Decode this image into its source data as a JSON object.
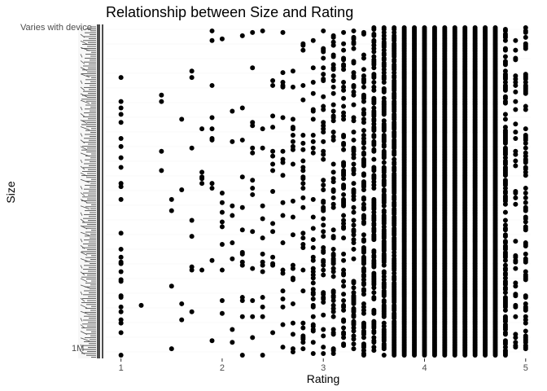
{
  "chart_data": {
    "type": "scatter",
    "title": "Relationship between Size and Rating",
    "xlabel": "Rating",
    "ylabel": "Size",
    "x_ticks": [
      1,
      2,
      3,
      4,
      5
    ],
    "x_tick_labels": [
      "1",
      "2",
      "3",
      "4",
      "5"
    ],
    "xlim": [
      0.85,
      5.05
    ],
    "y_axis_kind": "categorical (sizes as text categories, overlapping unreadable tick labels)",
    "y_visible_tick_labels": [
      "Varies with device",
      "1M"
    ],
    "grid": true,
    "point_color": "#000000",
    "legend": "none",
    "columns": [
      {
        "rating": 1.0,
        "count": 28
      },
      {
        "rating": 1.2,
        "count": 1
      },
      {
        "rating": 1.4,
        "count": 4
      },
      {
        "rating": 1.5,
        "count": 4
      },
      {
        "rating": 1.6,
        "count": 4
      },
      {
        "rating": 1.7,
        "count": 8
      },
      {
        "rating": 1.8,
        "count": 6
      },
      {
        "rating": 1.9,
        "count": 11
      },
      {
        "rating": 2.0,
        "count": 10
      },
      {
        "rating": 2.1,
        "count": 8
      },
      {
        "rating": 2.2,
        "count": 14
      },
      {
        "rating": 2.3,
        "count": 14
      },
      {
        "rating": 2.4,
        "count": 14
      },
      {
        "rating": 2.5,
        "count": 15
      },
      {
        "rating": 2.6,
        "count": 20
      },
      {
        "rating": 2.7,
        "count": 22
      },
      {
        "rating": 2.8,
        "count": 30
      },
      {
        "rating": 2.9,
        "count": 36
      },
      {
        "rating": 3.0,
        "count": 50
      },
      {
        "rating": 3.1,
        "count": 58
      },
      {
        "rating": 3.2,
        "count": 64
      },
      {
        "rating": 3.3,
        "count": 70
      },
      {
        "rating": 3.4,
        "count": 90
      },
      {
        "rating": 3.5,
        "count": 110
      },
      {
        "rating": 3.6,
        "count": 140
      },
      {
        "rating": 3.7,
        "count": 170
      },
      {
        "rating": 3.8,
        "count": 210
      },
      {
        "rating": 3.9,
        "count": 260
      },
      {
        "rating": 4.0,
        "count": 320
      },
      {
        "rating": 4.1,
        "count": 380
      },
      {
        "rating": 4.2,
        "count": 400
      },
      {
        "rating": 4.3,
        "count": 420
      },
      {
        "rating": 4.4,
        "count": 410
      },
      {
        "rating": 4.5,
        "count": 380
      },
      {
        "rating": 4.6,
        "count": 300
      },
      {
        "rating": 4.7,
        "count": 220
      },
      {
        "rating": 4.8,
        "count": 120
      },
      {
        "rating": 4.9,
        "count": 40
      },
      {
        "rating": 5.0,
        "count": 80
      }
    ]
  }
}
